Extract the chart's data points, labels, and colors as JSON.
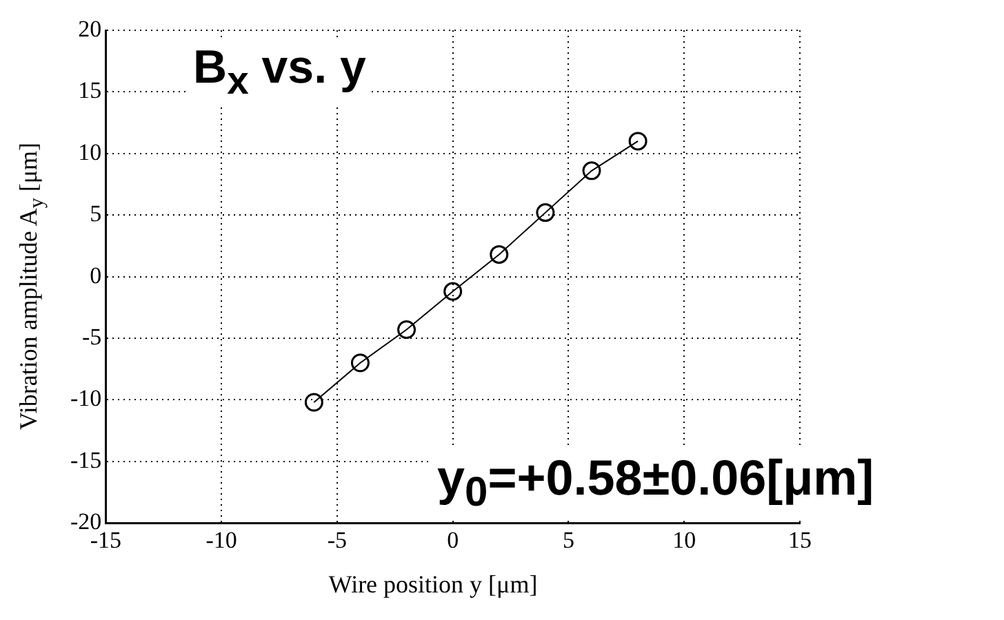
{
  "chart_data": {
    "type": "line",
    "xlabel": "Wire position y  [μm]",
    "ylabel": "Vibration amplitude A$_{y}$  [μm]",
    "x": [
      -6,
      -4,
      -2,
      0,
      2,
      4,
      6,
      8
    ],
    "series": [
      {
        "color": "#000000",
        "values": [
          -10.2,
          -7.0,
          -4.3,
          -1.2,
          1.8,
          5.2,
          8.6,
          11.0
        ]
      }
    ],
    "xlim": [
      -15,
      15
    ],
    "xticks": [
      -15,
      -10,
      -5,
      0,
      5,
      10,
      15
    ],
    "ylim": [
      -20,
      20
    ],
    "yticks": [
      -20,
      -15,
      -10,
      -5,
      0,
      5,
      10,
      15,
      20
    ],
    "grid": true,
    "marker": "circle",
    "line_style": "solid",
    "annotations": [
      "B$_{x}$ vs. y",
      "y$_{0}$=+0.58±0.06[μm]"
    ]
  }
}
